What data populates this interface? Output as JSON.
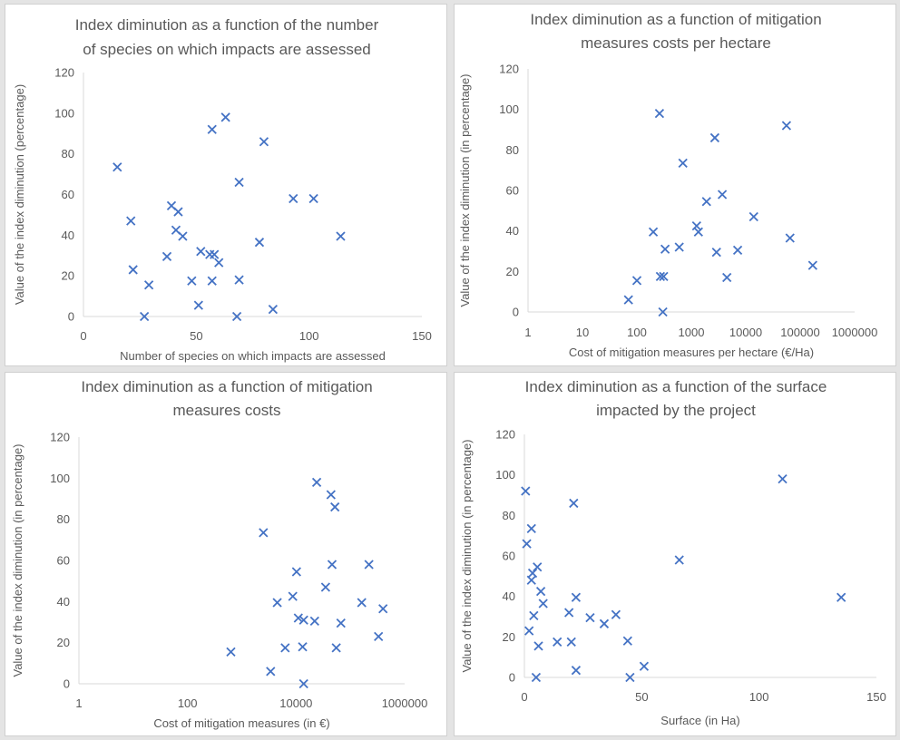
{
  "colors": {
    "marker": "#4472c4",
    "text": "#595959",
    "axis": "#d9d9d9"
  },
  "chart_data": [
    {
      "type": "scatter",
      "title": [
        "Index diminution as a function of the number",
        "of species on which impacts are assessed"
      ],
      "xlabel": "Number of species on which impacts are assessed",
      "ylabel": "Value of the index diminution (percentage)",
      "xscale": "linear",
      "xlim": [
        0,
        150
      ],
      "xticks": [
        "0",
        "50",
        "100",
        "150"
      ],
      "xtick_values": [
        0,
        50,
        100,
        150
      ],
      "ylim": [
        0,
        120
      ],
      "yticks": [
        "0",
        "20",
        "40",
        "60",
        "80",
        "100",
        "120"
      ],
      "ytick_values": [
        0,
        20,
        40,
        60,
        80,
        100,
        120
      ],
      "grid": false,
      "points": [
        [
          15,
          73.5
        ],
        [
          21,
          47
        ],
        [
          22,
          23
        ],
        [
          27,
          0
        ],
        [
          29,
          15.5
        ],
        [
          37,
          29.5
        ],
        [
          39,
          54.5
        ],
        [
          41,
          42.5
        ],
        [
          42,
          51.5
        ],
        [
          44,
          39.5
        ],
        [
          48,
          17.5
        ],
        [
          51,
          5.5
        ],
        [
          52,
          32
        ],
        [
          56,
          30.5
        ],
        [
          57,
          92
        ],
        [
          57,
          17.5
        ],
        [
          58,
          30.5
        ],
        [
          60,
          26.5
        ],
        [
          63,
          98
        ],
        [
          68,
          0
        ],
        [
          69,
          18
        ],
        [
          69,
          66
        ],
        [
          78,
          36.5
        ],
        [
          80,
          86
        ],
        [
          84,
          3.5
        ],
        [
          93,
          58
        ],
        [
          102,
          58
        ],
        [
          114,
          39.5
        ]
      ]
    },
    {
      "type": "scatter",
      "title": [
        "Index diminution as a function of mitigation",
        "measures costs per hectare"
      ],
      "xlabel": "Cost of mitigation measures per hectare (€/Ha)",
      "ylabel": "Value of the index diminution (in percentage)",
      "xscale": "log",
      "xlim": [
        1,
        1000000
      ],
      "xticks": [
        "1",
        "10",
        "100",
        "1000",
        "10000",
        "100000",
        "1000000"
      ],
      "xtick_values": [
        1,
        10,
        100,
        1000,
        10000,
        100000,
        1000000
      ],
      "ylim": [
        0,
        120
      ],
      "yticks": [
        "0",
        "20",
        "40",
        "60",
        "80",
        "100",
        "120"
      ],
      "ytick_values": [
        0,
        20,
        40,
        60,
        80,
        100,
        120
      ],
      "grid": false,
      "points": [
        [
          70,
          6
        ],
        [
          100,
          15.5
        ],
        [
          200,
          39.5
        ],
        [
          260,
          98
        ],
        [
          270,
          17.5
        ],
        [
          300,
          0
        ],
        [
          310,
          17.5
        ],
        [
          330,
          31
        ],
        [
          600,
          32
        ],
        [
          700,
          73.5
        ],
        [
          1250,
          42.5
        ],
        [
          1350,
          39.5
        ],
        [
          1900,
          54.5
        ],
        [
          2700,
          86
        ],
        [
          2900,
          29.5
        ],
        [
          3700,
          58
        ],
        [
          4500,
          17
        ],
        [
          7100,
          30.5
        ],
        [
          14000,
          47
        ],
        [
          56000,
          92
        ],
        [
          65000,
          36.5
        ],
        [
          170000,
          23
        ]
      ]
    },
    {
      "type": "scatter",
      "title": [
        "Index diminution as a function of mitigation",
        "measures costs"
      ],
      "xlabel": "Cost of mitigation measures (in €)",
      "ylabel": "Value of the index diminution (in percentage)",
      "xscale": "log",
      "xlim": [
        1,
        1000000
      ],
      "xticks": [
        "1",
        "100",
        "10000",
        "1000000"
      ],
      "xtick_values": [
        1,
        100,
        10000,
        1000000
      ],
      "ylim": [
        0,
        120
      ],
      "yticks": [
        "0",
        "20",
        "40",
        "60",
        "80",
        "100",
        "120"
      ],
      "ytick_values": [
        0,
        20,
        40,
        60,
        80,
        100,
        120
      ],
      "grid": false,
      "points": [
        [
          630,
          15.5
        ],
        [
          2500,
          73.5
        ],
        [
          3400,
          6
        ],
        [
          4500,
          39.5
        ],
        [
          6300,
          17.5
        ],
        [
          8700,
          42.5
        ],
        [
          10200,
          54.5
        ],
        [
          11000,
          32
        ],
        [
          13200,
          18
        ],
        [
          13800,
          31
        ],
        [
          13800,
          0
        ],
        [
          22000,
          30.5
        ],
        [
          24000,
          98
        ],
        [
          35000,
          47
        ],
        [
          44000,
          92
        ],
        [
          46000,
          58
        ],
        [
          52000,
          86
        ],
        [
          55000,
          17.5
        ],
        [
          67000,
          29.5
        ],
        [
          162000,
          39.5
        ],
        [
          220000,
          58
        ],
        [
          330000,
          23
        ],
        [
          400000,
          36.5
        ]
      ]
    },
    {
      "type": "scatter",
      "title": [
        "Index diminution as a function of the surface",
        "impacted by the project"
      ],
      "xlabel": "Surface (in Ha)",
      "ylabel": "Value of the index diminution (in percentage)",
      "xscale": "linear",
      "xlim": [
        0,
        150
      ],
      "xticks": [
        "0",
        "50",
        "100",
        "150"
      ],
      "xtick_values": [
        0,
        50,
        100,
        150
      ],
      "ylim": [
        0,
        120
      ],
      "yticks": [
        "0",
        "20",
        "40",
        "60",
        "80",
        "100",
        "120"
      ],
      "ytick_values": [
        0,
        20,
        40,
        60,
        80,
        100,
        120
      ],
      "grid": false,
      "points": [
        [
          0.5,
          92
        ],
        [
          1,
          66
        ],
        [
          2,
          23
        ],
        [
          3,
          73.5
        ],
        [
          3,
          48
        ],
        [
          3.5,
          51.5
        ],
        [
          4,
          30.5
        ],
        [
          5,
          0
        ],
        [
          5.5,
          54.5
        ],
        [
          6,
          15.5
        ],
        [
          7,
          42.5
        ],
        [
          8,
          36.5
        ],
        [
          14,
          17.5
        ],
        [
          19,
          32
        ],
        [
          20,
          17.5
        ],
        [
          21,
          86
        ],
        [
          22,
          39.5
        ],
        [
          22,
          3.5
        ],
        [
          28,
          29.5
        ],
        [
          34,
          26.5
        ],
        [
          39,
          31
        ],
        [
          44,
          18
        ],
        [
          45,
          0
        ],
        [
          51,
          5.5
        ],
        [
          66,
          58
        ],
        [
          110,
          98
        ],
        [
          135,
          39.5
        ]
      ]
    }
  ]
}
